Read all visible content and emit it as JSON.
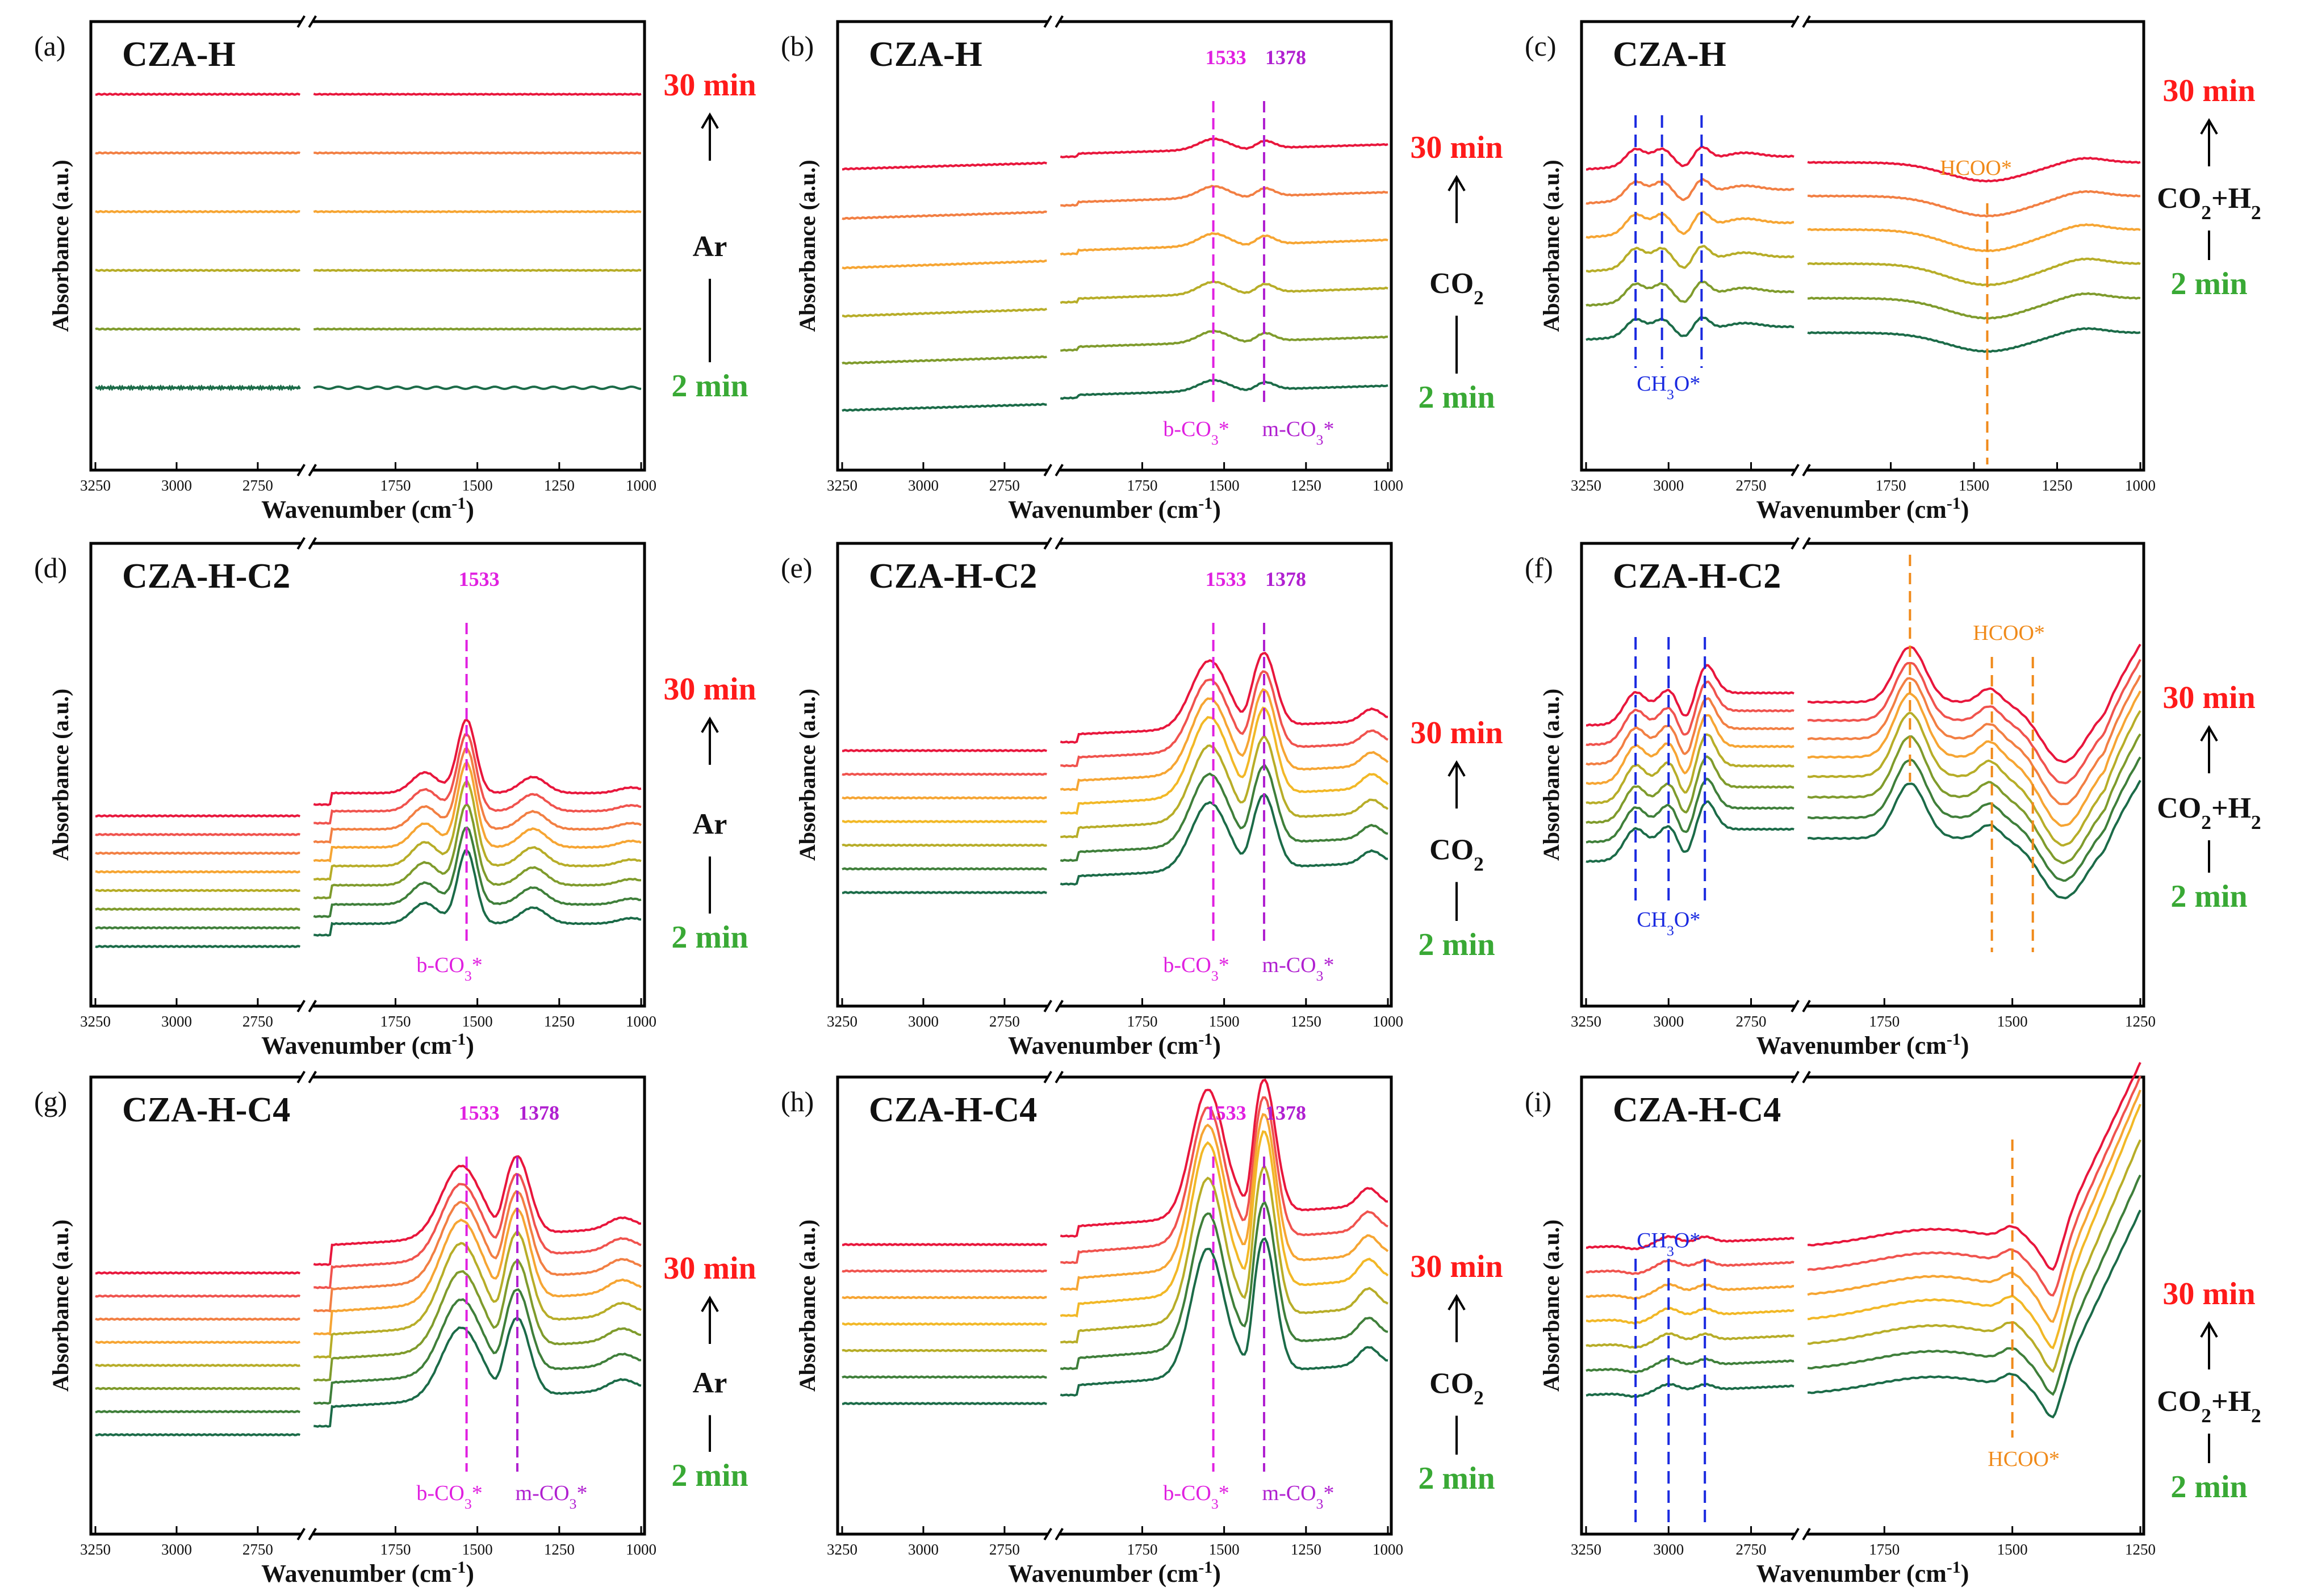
{
  "figure": {
    "x_axis_label": "Wavenumber (cm",
    "x_axis_unit_sup": "-1",
    "x_axis_label_close": ")",
    "y_axis_label": "Absorbance (a.u.)"
  },
  "chart_data": [
    {
      "panel": "(a)",
      "title": "CZA-H",
      "type": "line",
      "left_ticks": [
        3250,
        3000,
        2750
      ],
      "right_ticks": [
        1750,
        1500,
        1250,
        1000
      ],
      "left_range": [
        3250,
        2620
      ],
      "right_range": [
        2000,
        1000
      ],
      "series_count": 6,
      "curve_style": "flat",
      "time_top": "30 min",
      "time_bottom": "2 min",
      "gas": [
        "Ar"
      ],
      "peaks": [],
      "annotations": []
    },
    {
      "panel": "(b)",
      "title": "CZA-H",
      "type": "line",
      "left_ticks": [
        3250,
        3000,
        2750
      ],
      "right_ticks": [
        1750,
        1500,
        1250,
        1000
      ],
      "left_range": [
        3250,
        2620
      ],
      "right_range": [
        2000,
        1000
      ],
      "series_count": 6,
      "curve_style": "weak_carbonate",
      "time_top": "30 min",
      "time_bottom": "2 min",
      "gas": [
        "CO",
        "2"
      ],
      "peaks": [
        {
          "label": "1533",
          "wavenumber": 1533,
          "color": "#e020e0"
        },
        {
          "label": "1378",
          "wavenumber": 1378,
          "color": "#b020d0"
        }
      ],
      "annotations": [
        {
          "text": "b-CO",
          "sub": "3",
          "suffix": "*",
          "wavenumber": 1533,
          "color": "#e020e0"
        },
        {
          "text": "m-CO",
          "sub": "3",
          "suffix": "*",
          "wavenumber": 1378,
          "color": "#b020d0"
        }
      ]
    },
    {
      "panel": "(c)",
      "title": "CZA-H",
      "type": "line",
      "left_ticks": [
        3250,
        3000,
        2750
      ],
      "right_ticks": [
        1750,
        1500,
        1250,
        1000
      ],
      "left_range": [
        3250,
        2620
      ],
      "right_range": [
        2000,
        1000
      ],
      "series_count": 6,
      "curve_style": "methoxy_weak",
      "time_top": "30 min",
      "time_bottom": "2 min",
      "gas": [
        "CO",
        "2",
        "+H",
        "2"
      ],
      "peaks": [
        {
          "label": "HCOO*",
          "wavenumber": 1460,
          "color": "#f08a1a"
        }
      ],
      "methoxy_lines": [
        3100,
        3020,
        2900
      ],
      "annotations": [
        {
          "text": "CH",
          "sub": "3",
          "suffix": "O*",
          "wavenumber": 3000,
          "color": "#1a2ae0"
        }
      ]
    },
    {
      "panel": "(d)",
      "title": "CZA-H-C2",
      "type": "line",
      "left_ticks": [
        3250,
        3000,
        2750
      ],
      "right_ticks": [
        1750,
        1500,
        1250,
        1000
      ],
      "left_range": [
        3250,
        2620
      ],
      "right_range": [
        2000,
        1000
      ],
      "series_count": 8,
      "curve_style": "bidentate_strong",
      "time_top": "30 min",
      "time_bottom": "2 min",
      "gas": [
        "Ar"
      ],
      "peaks": [
        {
          "label": "1533",
          "wavenumber": 1533,
          "color": "#e020e0"
        }
      ],
      "annotations": [
        {
          "text": "b-CO",
          "sub": "3",
          "suffix": "*",
          "wavenumber": 1533,
          "color": "#e020e0"
        }
      ]
    },
    {
      "panel": "(e)",
      "title": "CZA-H-C2",
      "type": "line",
      "left_ticks": [
        3250,
        3000,
        2750
      ],
      "right_ticks": [
        1750,
        1500,
        1250,
        1000
      ],
      "left_range": [
        3250,
        2620
      ],
      "right_range": [
        2000,
        1000
      ],
      "series_count": 7,
      "curve_style": "double_carbonate",
      "time_top": "30 min",
      "time_bottom": "2 min",
      "gas": [
        "CO",
        "2"
      ],
      "peaks": [
        {
          "label": "1533",
          "wavenumber": 1533,
          "color": "#e020e0"
        },
        {
          "label": "1378",
          "wavenumber": 1378,
          "color": "#b020d0"
        }
      ],
      "annotations": [
        {
          "text": "b-CO",
          "sub": "3",
          "suffix": "*",
          "wavenumber": 1533,
          "color": "#e020e0"
        },
        {
          "text": "m-CO",
          "sub": "3",
          "suffix": "*",
          "wavenumber": 1378,
          "color": "#b020d0"
        }
      ]
    },
    {
      "panel": "(f)",
      "title": "CZA-H-C2",
      "type": "line",
      "left_ticks": [
        3250,
        3000,
        2750
      ],
      "right_ticks": [
        1750,
        1500,
        1250
      ],
      "left_range": [
        3250,
        2620
      ],
      "right_range": [
        1900,
        1250
      ],
      "series_count": 8,
      "curve_style": "methoxy_formate",
      "time_top": "30 min",
      "time_bottom": "2 min",
      "gas": [
        "CO",
        "2",
        "+H",
        "2"
      ],
      "peaks": [
        {
          "label": "HCOO*",
          "wavenumber": 1540,
          "color": "#f08a1a"
        }
      ],
      "formate_lines": [
        1700,
        1540,
        1460
      ],
      "methoxy_lines": [
        3100,
        3000,
        2890
      ],
      "annotations": [
        {
          "text": "CH",
          "sub": "3",
          "suffix": "O*",
          "wavenumber": 3000,
          "color": "#1a2ae0"
        }
      ]
    },
    {
      "panel": "(g)",
      "title": "CZA-H-C4",
      "type": "line",
      "left_ticks": [
        3250,
        3000,
        2750
      ],
      "right_ticks": [
        1750,
        1500,
        1250,
        1000
      ],
      "left_range": [
        3250,
        2620
      ],
      "right_range": [
        2000,
        1000
      ],
      "series_count": 8,
      "curve_style": "double_carbonate_g",
      "time_top": "30 min",
      "time_bottom": "2 min",
      "gas": [
        "Ar"
      ],
      "peaks": [
        {
          "label": "1533",
          "wavenumber": 1533,
          "color": "#e020e0"
        },
        {
          "label": "1378",
          "wavenumber": 1378,
          "color": "#b020d0"
        }
      ],
      "annotations": [
        {
          "text": "b-CO",
          "sub": "3",
          "suffix": "*",
          "wavenumber": 1533,
          "color": "#e020e0"
        },
        {
          "text": "m-CO",
          "sub": "3",
          "suffix": "*",
          "wavenumber": 1378,
          "color": "#b020d0"
        }
      ]
    },
    {
      "panel": "(h)",
      "title": "CZA-H-C4",
      "type": "line",
      "left_ticks": [
        3250,
        3000,
        2750
      ],
      "right_ticks": [
        1750,
        1500,
        1250,
        1000
      ],
      "left_range": [
        3250,
        2620
      ],
      "right_range": [
        2000,
        1000
      ],
      "series_count": 7,
      "curve_style": "double_carbonate_h",
      "time_top": "30 min",
      "time_bottom": "2 min",
      "gas": [
        "CO",
        "2"
      ],
      "peaks": [
        {
          "label": "1533",
          "wavenumber": 1533,
          "color": "#e020e0"
        },
        {
          "label": "1378",
          "wavenumber": 1378,
          "color": "#b020d0"
        }
      ],
      "annotations": [
        {
          "text": "b-CO",
          "sub": "3",
          "suffix": "*",
          "wavenumber": 1533,
          "color": "#e020e0"
        },
        {
          "text": "m-CO",
          "sub": "3",
          "suffix": "*",
          "wavenumber": 1378,
          "color": "#b020d0"
        }
      ]
    },
    {
      "panel": "(i)",
      "title": "CZA-H-C4",
      "type": "line",
      "left_ticks": [
        3250,
        3000,
        2750
      ],
      "right_ticks": [
        1750,
        1500,
        1250
      ],
      "left_range": [
        3250,
        2620
      ],
      "right_range": [
        1900,
        1250
      ],
      "series_count": 7,
      "curve_style": "formate_i",
      "time_top": "30 min",
      "time_bottom": "2 min",
      "gas": [
        "CO",
        "2",
        "+H",
        "2"
      ],
      "peaks": [
        {
          "label": "HCOO*",
          "wavenumber": 1500,
          "color": "#f08a1a"
        }
      ],
      "methoxy_lines": [
        3100,
        3000,
        2890
      ],
      "annotations": [
        {
          "text": "CH",
          "sub": "3",
          "suffix": "O*",
          "wavenumber": 3000,
          "color": "#1a2ae0"
        }
      ]
    }
  ],
  "colors": {
    "series": [
      "#e8163c",
      "#f0534e",
      "#f27f43",
      "#f6a533",
      "#f2b826",
      "#b7ad28",
      "#7f9b2c",
      "#3f7f3a",
      "#1b6b48"
    ],
    "time_top": "#ff1a1a",
    "time_bottom": "#39a935",
    "methoxy": "#1a2ae0",
    "formate": "#f08a1a"
  }
}
